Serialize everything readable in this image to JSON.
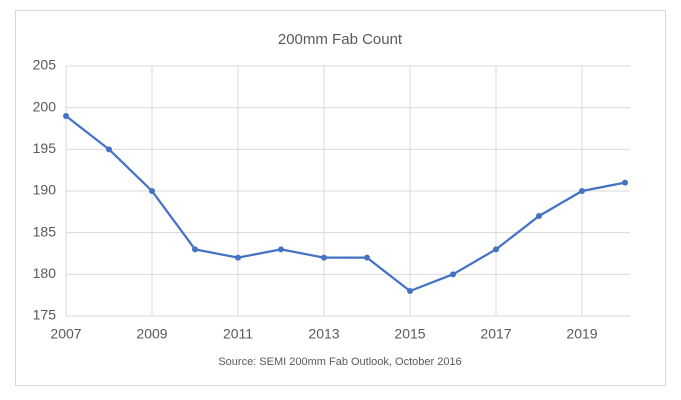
{
  "chart_data": {
    "type": "line",
    "title": "200mm Fab Count",
    "source": "Source: SEMI 200mm Fab Outlook, October 2016",
    "x": [
      2007,
      2008,
      2009,
      2010,
      2011,
      2012,
      2013,
      2014,
      2015,
      2016,
      2017,
      2018,
      2019,
      2020
    ],
    "series": [
      {
        "name": "200mm Fab Count",
        "color": "#4472c4",
        "values": [
          199,
          195,
          190,
          183,
          182,
          183,
          182,
          182,
          178,
          180,
          183,
          187,
          190,
          191
        ]
      }
    ],
    "xlim": [
      2007,
      2020
    ],
    "xticks": [
      2007,
      2009,
      2011,
      2013,
      2015,
      2017,
      2019
    ],
    "ylim": [
      175,
      205
    ],
    "yticks": [
      175,
      180,
      185,
      190,
      195,
      200,
      205
    ],
    "grid": true
  }
}
